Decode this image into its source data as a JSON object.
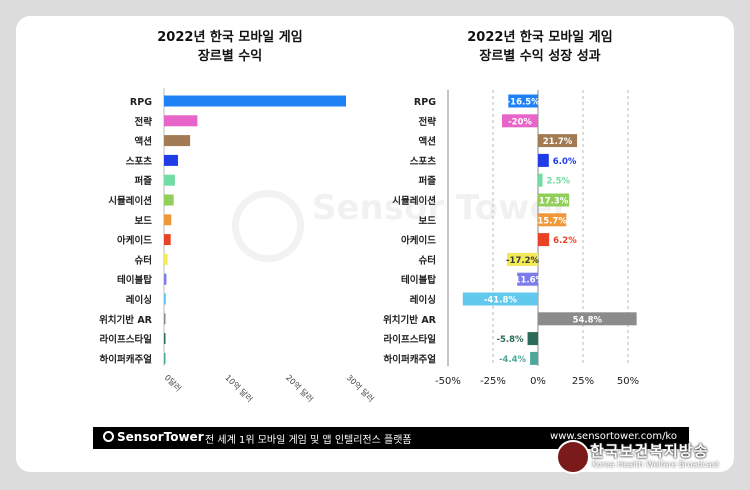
{
  "chart_data": [
    {
      "type": "bar",
      "orientation": "horizontal",
      "title_line1": "2022년 한국 모바일 게임",
      "title_line2": "장르별 수익",
      "categories": [
        "RPG",
        "전략",
        "액션",
        "스포츠",
        "퍼즐",
        "시뮬레이션",
        "보드",
        "아케이드",
        "슈터",
        "테이블탑",
        "레이싱",
        "위치기반 AR",
        "라이프스타일",
        "하이퍼캐주얼"
      ],
      "values": [
        30.0,
        5.5,
        4.3,
        2.3,
        1.8,
        1.6,
        1.2,
        1.1,
        0.6,
        0.4,
        0.3,
        0.15,
        0.12,
        0.08
      ],
      "colors": [
        "#1e82f5",
        "#e764c8",
        "#a27a54",
        "#1f3ce6",
        "#73dca3",
        "#92cf5a",
        "#f0973a",
        "#ea4224",
        "#f2ea57",
        "#7b7bf0",
        "#62c9ee",
        "#8b8b8b",
        "#2a6b5a",
        "#4ea99a"
      ],
      "xticks": [
        "0달러",
        "10억 달러",
        "20억 달러",
        "30억 달러"
      ],
      "xlim": [
        0,
        30
      ]
    },
    {
      "type": "bar",
      "orientation": "horizontal",
      "title_line1": "2022년 한국 모바일 게임",
      "title_line2": "장르별 수익 성장 성과",
      "categories": [
        "RPG",
        "전략",
        "액션",
        "스포츠",
        "퍼즐",
        "시뮬레이션",
        "보드",
        "아케이드",
        "슈터",
        "테이블탑",
        "레이싱",
        "위치기반 AR",
        "라이프스타일",
        "하이퍼캐주얼"
      ],
      "values": [
        -16.5,
        -20,
        21.7,
        6.0,
        2.5,
        17.3,
        15.7,
        6.2,
        -17.2,
        -11.6,
        -41.8,
        54.8,
        -5.8,
        -4.4
      ],
      "labels": [
        "-16.5%",
        "-20%",
        "21.7%",
        "6.0%",
        "2.5%",
        "17.3%",
        "15.7%",
        "6.2%",
        "-17.2%",
        "-11.6%",
        "-41.8%",
        "54.8%",
        "-5.8%",
        "-4.4%"
      ],
      "colors": [
        "#1e82f5",
        "#e764c8",
        "#a27a54",
        "#1f3ce6",
        "#73dca3",
        "#92cf5a",
        "#f0973a",
        "#ea4224",
        "#f2ea57",
        "#7b7bf0",
        "#62c9ee",
        "#8b8b8b",
        "#2a6b5a",
        "#4ea99a"
      ],
      "xticks": [
        "-50%",
        "-25%",
        "0%",
        "25%",
        "50%"
      ],
      "tick_values": [
        -50,
        -25,
        0,
        25,
        50
      ],
      "xlim": [
        -50,
        50
      ]
    }
  ],
  "footer": {
    "brand": "SensorTower",
    "tagline": "전 세계 1위 모바일 게임 및 앱 인텔리전스 플랫폼",
    "url": "www.sensortower.com/ko"
  },
  "watermark": {
    "brand": "SensorTower"
  },
  "stamp": {
    "name_ko": "한국보건복지방송",
    "name_en": "Korea Health Welfare Broadcast"
  }
}
